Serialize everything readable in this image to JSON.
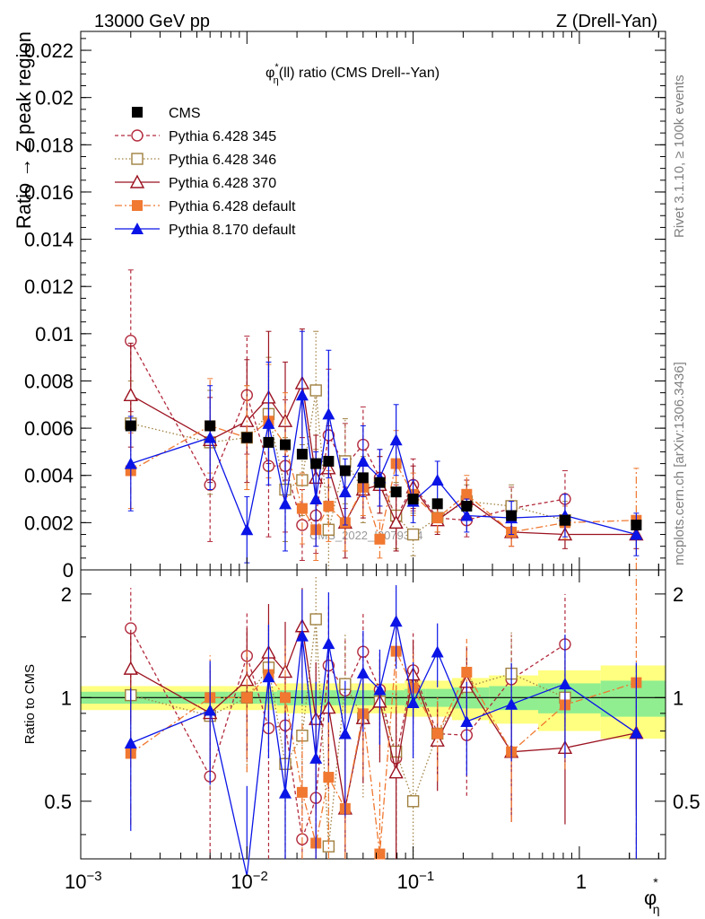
{
  "header": {
    "energy": "13000 GeV pp",
    "process": "Z (Drell-Yan)",
    "rivet": "Rivet 3.1.10, ≥ 100k events",
    "mcplots": "mcplots.cern.ch [arXiv:1306.3436]",
    "watermark": "CMS_2022_I2079374"
  },
  "main_panel": {
    "title_phi": "φ",
    "title_star": "*",
    "title_eta": "η",
    "title_rest": "(ll) ratio (CMS Drell--Yan)",
    "ylabel": "Ratio → Z peak region",
    "yticks": [
      "0",
      "0.002",
      "0.004",
      "0.006",
      "0.008",
      "0.01",
      "0.012",
      "0.014",
      "0.016",
      "0.018",
      "0.02",
      "0.022"
    ]
  },
  "ratio_panel": {
    "ylabel": "Ratio to CMS",
    "yticks": [
      "0.5",
      "1",
      "2"
    ]
  },
  "xaxis": {
    "label_phi": "φ",
    "label_star": "*",
    "label_eta": "η",
    "ticks": [
      {
        "base": "10",
        "exp": "−3"
      },
      {
        "base": "10",
        "exp": "−2"
      },
      {
        "base": "10",
        "exp": "−1"
      },
      {
        "base": "1",
        "exp": ""
      }
    ]
  },
  "legend": [
    {
      "name": "CMS",
      "color": "#000000",
      "marker": "square-filled",
      "dash": "solid"
    },
    {
      "name": "Pythia 6.428 345",
      "color": "#b22a3d",
      "marker": "circle-open",
      "dash": "4,3"
    },
    {
      "name": "Pythia 6.428 346",
      "color": "#a08040",
      "marker": "square-open",
      "dash": "1.5,2.5"
    },
    {
      "name": "Pythia 6.428 370",
      "color": "#9b1220",
      "marker": "triangle-open",
      "dash": "solid"
    },
    {
      "name": "Pythia 6.428 default",
      "color": "#f07830",
      "marker": "square-filled",
      "dash": "8,3,2,3"
    },
    {
      "name": "Pythia 8.170 default",
      "color": "#0a14e6",
      "marker": "triangle-filled",
      "dash": "solid"
    }
  ],
  "chart_data": {
    "type": "scatter",
    "x_scale": "log",
    "xlim": [
      0.001,
      3.3
    ],
    "main_ylim": [
      0,
      0.0228
    ],
    "ratio_ylim": [
      0.34,
      2.35
    ],
    "x": [
      0.002,
      0.006,
      0.01,
      0.0135,
      0.017,
      0.0215,
      0.026,
      0.031,
      0.039,
      0.05,
      0.063,
      0.079,
      0.1,
      0.14,
      0.21,
      0.39,
      0.82,
      2.2
    ],
    "series": [
      {
        "name": "CMS",
        "y": [
          0.0061,
          0.0061,
          0.0056,
          0.0054,
          0.0053,
          0.0049,
          0.0045,
          0.0046,
          0.0042,
          0.0039,
          0.0037,
          0.0033,
          0.003,
          0.0028,
          0.0027,
          0.0023,
          0.0021,
          0.0019
        ],
        "err": [
          0.0001,
          0.0001,
          0.0001,
          0.0001,
          0.0001,
          0.0001,
          0.0001,
          0.0001,
          0.0001,
          0.0001,
          0.0001,
          0.0001,
          0.0001,
          0.0001,
          0.0001,
          0.0001,
          0.0001,
          0.0001
        ]
      },
      {
        "name": "Pythia 6.428 345",
        "y": [
          0.0097,
          0.0036,
          0.0074,
          0.0044,
          0.0044,
          0.0019,
          0.0023,
          0.0057,
          0.0044,
          0.0053,
          0.0039,
          0.0022,
          0.0036,
          0.0022,
          0.0021,
          0.0026,
          0.003,
          null
        ],
        "err": [
          0.003,
          0.0024,
          0.0025,
          0.003,
          0.0028,
          0.0015,
          0.0016,
          0.0028,
          0.0018,
          0.0016,
          0.0012,
          0.0014,
          0.0011,
          0.0006,
          0.0007,
          0.0009,
          0.0012,
          null
        ]
      },
      {
        "name": "Pythia 6.428 346",
        "y": [
          0.0062,
          0.0054,
          0.0056,
          0.0066,
          0.0034,
          0.0038,
          0.0076,
          0.0017,
          0.0046,
          0.0034,
          0.0036,
          0.0023,
          0.0015,
          0.0022,
          0.0029,
          0.0027,
          0.0021,
          null
        ],
        "err": [
          0.0018,
          0.0022,
          0.0022,
          0.0024,
          0.0022,
          0.0015,
          0.0025,
          0.0018,
          0.0018,
          0.0014,
          0.0012,
          0.0014,
          0.0009,
          0.0006,
          0.0007,
          0.0009,
          0.0008,
          null
        ]
      },
      {
        "name": "Pythia 6.428 370",
        "y": [
          0.0074,
          0.0055,
          0.0063,
          0.0073,
          0.0063,
          0.0079,
          0.0039,
          0.0043,
          0.002,
          0.0034,
          0.0036,
          0.002,
          0.0035,
          0.0021,
          0.003,
          0.0016,
          0.0015,
          0.0015
        ],
        "err": [
          0.0022,
          0.0018,
          0.0026,
          0.0028,
          0.0025,
          0.0023,
          0.0018,
          0.0018,
          0.0015,
          0.0012,
          0.0012,
          0.0012,
          0.0009,
          0.0006,
          0.0008,
          0.0006,
          0.0006,
          0.0006
        ]
      },
      {
        "name": "Pythia 6.428 default",
        "y": [
          0.0042,
          0.0061,
          0.0056,
          0.0063,
          0.0053,
          0.0026,
          0.0017,
          0.0027,
          0.002,
          0.0035,
          0.0013,
          0.0045,
          0.0032,
          0.0022,
          0.0032,
          0.0016,
          0.002,
          0.0021
        ],
        "err": [
          0.0016,
          0.002,
          0.0022,
          0.0024,
          0.0022,
          0.0015,
          0.0013,
          0.0015,
          0.0012,
          0.0012,
          0.0008,
          0.0014,
          0.0009,
          0.0006,
          0.0008,
          0.0006,
          0.0007,
          0.0022
        ]
      },
      {
        "name": "Pythia 8.170 default",
        "y": [
          0.0045,
          0.0056,
          0.0017,
          0.0062,
          0.0028,
          0.0074,
          0.003,
          0.0066,
          0.0033,
          0.0046,
          0.0039,
          0.0055,
          0.0029,
          0.0038,
          0.0023,
          0.0022,
          0.0023,
          0.0015
        ],
        "err": [
          0.002,
          0.0022,
          0.0014,
          0.0026,
          0.002,
          0.0027,
          0.002,
          0.0027,
          0.0014,
          0.0015,
          0.0012,
          0.0015,
          0.0009,
          0.0008,
          0.0007,
          0.0007,
          0.0009,
          0.0009
        ]
      }
    ]
  }
}
